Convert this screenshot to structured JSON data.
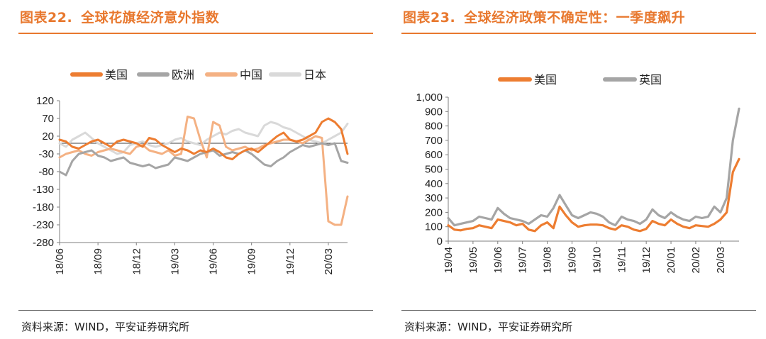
{
  "charts": [
    {
      "figure_number": "图表22.",
      "title": "全球花旗经济意外指数",
      "source": "资料来源：WIND，平安证券研究所"
    },
    {
      "figure_number": "图表23.",
      "title": "全球经济政策不确定性：一季度飙升",
      "source": "资料来源：WIND，平安证券研究所"
    }
  ],
  "colors": {
    "title": "#e8782e",
    "us": "#ed7d31",
    "europe": "#a5a5a5",
    "china": "#f4b183",
    "japan": "#d9d9d9",
    "uk": "#a5a5a5"
  },
  "chart_data": [
    {
      "type": "line",
      "title": "全球花旗经济意外指数",
      "legend_position": "top",
      "ylim": [
        -280,
        120
      ],
      "yticks": [
        120,
        70,
        20,
        -30,
        -80,
        -130,
        -180,
        -230,
        -280
      ],
      "x_tick_labels": [
        "18/06",
        "18/09",
        "18/12",
        "19/03",
        "19/06",
        "19/09",
        "19/12",
        "20/03"
      ],
      "x_start": "18/06",
      "x_end": "20/04",
      "series": [
        {
          "name": "美国",
          "x": [
            0,
            0.5,
            1.0,
            1.5,
            2.0,
            2.5,
            3.0,
            3.5,
            4.0,
            4.5,
            5.0,
            5.5,
            6.0,
            6.5,
            7.0,
            7.5,
            8.0,
            8.5,
            9.0,
            9.5,
            10.0,
            10.5,
            11.0,
            11.5,
            12.0,
            12.5,
            13.0,
            13.5,
            14.0,
            14.5,
            15.0,
            15.5,
            16.0,
            16.5,
            17.0,
            17.5,
            18.0,
            18.5,
            19.0,
            19.5,
            20.0,
            20.5,
            21.0,
            21.5,
            22.0,
            22.5
          ],
          "values": [
            10,
            5,
            -10,
            -15,
            -5,
            5,
            10,
            0,
            -10,
            5,
            10,
            5,
            0,
            -10,
            15,
            10,
            -5,
            -15,
            -25,
            -15,
            -20,
            -30,
            -20,
            -25,
            -15,
            -25,
            -40,
            -45,
            -30,
            -20,
            -15,
            -25,
            -10,
            5,
            20,
            30,
            10,
            5,
            10,
            20,
            30,
            60,
            70,
            60,
            40,
            -30
          ]
        },
        {
          "name": "欧洲",
          "x": [
            0,
            0.5,
            1.0,
            1.5,
            2.0,
            2.5,
            3.0,
            3.5,
            4.0,
            4.5,
            5.0,
            5.5,
            6.0,
            6.5,
            7.0,
            7.5,
            8.0,
            8.5,
            9.0,
            9.5,
            10.0,
            10.5,
            11.0,
            11.5,
            12.0,
            12.5,
            13.0,
            13.5,
            14.0,
            14.5,
            15.0,
            15.5,
            16.0,
            16.5,
            17.0,
            17.5,
            18.0,
            18.5,
            19.0,
            19.5,
            20.0,
            20.5,
            21.0,
            21.5,
            22.0,
            22.5
          ],
          "values": [
            -80,
            -90,
            -50,
            -30,
            -25,
            -20,
            -35,
            -40,
            -50,
            -45,
            -40,
            -55,
            -60,
            -65,
            -60,
            -70,
            -65,
            -60,
            -40,
            -45,
            -50,
            -40,
            -30,
            -25,
            -20,
            -35,
            -30,
            -25,
            -30,
            -20,
            -30,
            -45,
            -60,
            -65,
            -50,
            -40,
            -25,
            -15,
            -5,
            -10,
            -5,
            0,
            -5,
            0,
            -50,
            -55
          ]
        },
        {
          "name": "中国",
          "x": [
            0,
            0.5,
            1.0,
            1.5,
            2.0,
            2.5,
            3.0,
            3.5,
            4.0,
            4.5,
            5.0,
            5.5,
            6.0,
            6.5,
            7.0,
            7.5,
            8.0,
            8.5,
            9.0,
            9.5,
            10.0,
            10.5,
            11.0,
            11.5,
            12.0,
            12.5,
            13.0,
            13.5,
            14.0,
            14.5,
            15.0,
            15.5,
            16.0,
            16.5,
            17.0,
            17.5,
            18.0,
            18.5,
            19.0,
            19.5,
            20.0,
            20.5,
            21.0,
            21.5,
            22.0,
            22.5
          ],
          "values": [
            -40,
            -30,
            -25,
            -20,
            -30,
            -35,
            -25,
            -20,
            -15,
            -20,
            -25,
            -30,
            -10,
            -5,
            -20,
            -25,
            -30,
            -20,
            -35,
            -30,
            75,
            70,
            10,
            -40,
            60,
            50,
            -10,
            -20,
            -15,
            -10,
            -20,
            -15,
            -5,
            0,
            5,
            10,
            10,
            5,
            0,
            10,
            20,
            15,
            -220,
            -230,
            -230,
            -150
          ]
        },
        {
          "name": "日本",
          "x": [
            0,
            0.5,
            1.0,
            1.5,
            2.0,
            2.5,
            3.0,
            3.5,
            4.0,
            4.5,
            5.0,
            5.5,
            6.0,
            6.5,
            7.0,
            7.5,
            8.0,
            8.5,
            9.0,
            9.5,
            10.0,
            10.5,
            11.0,
            11.5,
            12.0,
            12.5,
            13.0,
            13.5,
            14.0,
            14.5,
            15.0,
            15.5,
            16.0,
            16.5,
            17.0,
            17.5,
            18.0,
            18.5,
            19.0,
            19.5,
            20.0,
            20.5,
            21.0,
            21.5,
            22.0,
            22.5
          ],
          "values": [
            0,
            -10,
            10,
            20,
            30,
            15,
            0,
            -10,
            -20,
            -30,
            -25,
            -5,
            0,
            5,
            -5,
            -10,
            -5,
            0,
            10,
            15,
            5,
            0,
            -5,
            10,
            20,
            30,
            25,
            35,
            40,
            30,
            25,
            20,
            50,
            60,
            55,
            45,
            40,
            30,
            20,
            10,
            5,
            0,
            10,
            20,
            30,
            55
          ]
        }
      ]
    },
    {
      "type": "line",
      "title": "全球经济政策不确定性：一季度飙升",
      "legend_position": "top",
      "ylim": [
        0,
        1000
      ],
      "yticks": [
        0,
        100,
        200,
        300,
        400,
        500,
        600,
        700,
        800,
        900,
        1000
      ],
      "y_tick_labels": [
        "0",
        "100",
        "200",
        "300",
        "400",
        "500",
        "600",
        "700",
        "800",
        "900",
        "1,000"
      ],
      "x_tick_labels": [
        "19/04",
        "19/05",
        "19/06",
        "19/07",
        "19/08",
        "19/09",
        "19/10",
        "19/11",
        "19/12",
        "20/01",
        "20/02",
        "20/03"
      ],
      "x_start": "19/04",
      "x_end": "20/04",
      "series": [
        {
          "name": "美国",
          "x": [
            0,
            0.25,
            0.5,
            0.75,
            1.0,
            1.25,
            1.5,
            1.75,
            2.0,
            2.25,
            2.5,
            2.75,
            3.0,
            3.25,
            3.5,
            3.75,
            4.0,
            4.25,
            4.5,
            4.75,
            5.0,
            5.25,
            5.5,
            5.75,
            6.0,
            6.25,
            6.5,
            6.75,
            7.0,
            7.25,
            7.5,
            7.75,
            8.0,
            8.25,
            8.5,
            8.75,
            9.0,
            9.25,
            9.5,
            9.75,
            10.0,
            10.25,
            10.5,
            10.75,
            11.0,
            11.25,
            11.5,
            11.75
          ],
          "values": [
            110,
            80,
            75,
            85,
            90,
            110,
            100,
            90,
            150,
            140,
            130,
            110,
            120,
            80,
            70,
            110,
            130,
            90,
            240,
            180,
            130,
            100,
            110,
            115,
            115,
            110,
            90,
            80,
            110,
            100,
            80,
            70,
            85,
            140,
            120,
            110,
            150,
            120,
            100,
            90,
            110,
            105,
            100,
            120,
            150,
            200,
            480,
            570
          ]
        },
        {
          "name": "英国",
          "x": [
            0,
            0.25,
            0.5,
            0.75,
            1.0,
            1.25,
            1.5,
            1.75,
            2.0,
            2.25,
            2.5,
            2.75,
            3.0,
            3.25,
            3.5,
            3.75,
            4.0,
            4.25,
            4.5,
            4.75,
            5.0,
            5.25,
            5.5,
            5.75,
            6.0,
            6.25,
            6.5,
            6.75,
            7.0,
            7.25,
            7.5,
            7.75,
            8.0,
            8.25,
            8.5,
            8.75,
            9.0,
            9.25,
            9.5,
            9.75,
            10.0,
            10.25,
            10.5,
            10.75,
            11.0,
            11.25,
            11.5,
            11.75
          ],
          "values": [
            160,
            110,
            120,
            130,
            140,
            170,
            160,
            150,
            230,
            190,
            160,
            150,
            140,
            120,
            150,
            180,
            170,
            230,
            320,
            250,
            180,
            160,
            180,
            200,
            190,
            170,
            130,
            110,
            170,
            150,
            140,
            120,
            150,
            220,
            180,
            160,
            200,
            170,
            150,
            140,
            170,
            160,
            170,
            240,
            200,
            300,
            700,
            920
          ]
        }
      ]
    }
  ]
}
